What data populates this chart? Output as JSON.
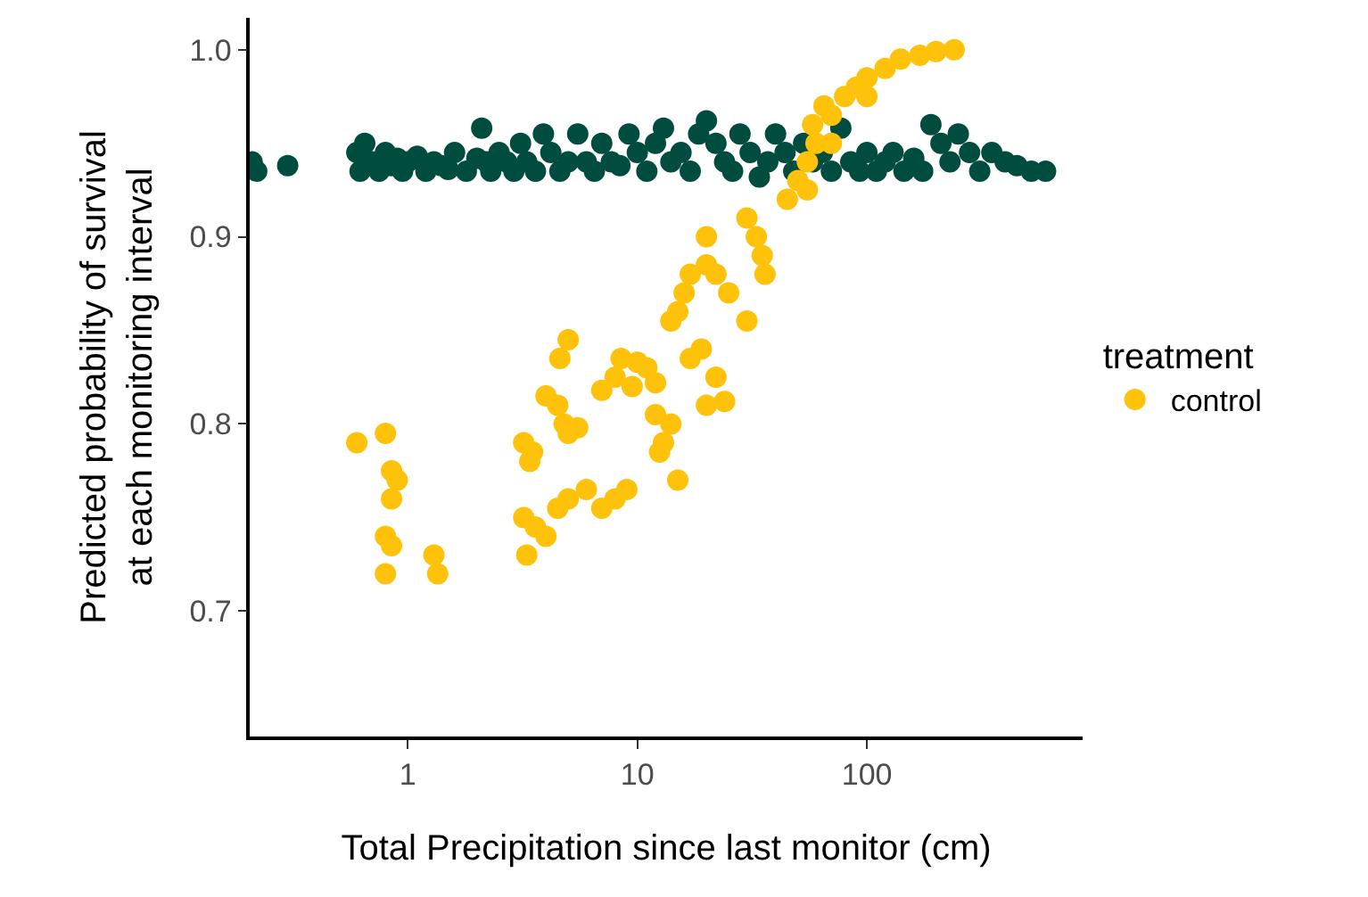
{
  "chart_data": {
    "type": "scatter",
    "xlabel": "Total Precipitation since last monitor (cm)",
    "ylabel": "Predicted probability of survival\nat each monitoring interval",
    "legend_title": "treatment",
    "legend": "right",
    "log": "x",
    "marker": "circle",
    "xlim": [
      0.205,
      870
    ],
    "xticks": [
      1,
      10,
      100
    ],
    "ylim": [
      0.633,
      1.017
    ],
    "yticks": [
      0.7,
      0.8,
      0.9,
      {
        "value": 1.0,
        "label": "1.0"
      }
    ],
    "series": [
      {
        "color": "#004d40",
        "x": [
          0.21,
          0.22,
          0.3,
          0.6,
          0.62,
          0.65,
          0.7,
          0.75,
          0.8,
          0.85,
          0.9,
          0.95,
          1.0,
          1.1,
          1.2,
          1.3,
          1.4,
          1.5,
          1.6,
          1.8,
          2.0,
          2.1,
          2.2,
          2.3,
          2.5,
          2.7,
          2.9,
          3.1,
          3.3,
          3.6,
          3.9,
          4.2,
          4.6,
          5.0,
          5.5,
          6.0,
          6.5,
          7.0,
          7.7,
          8.4,
          9.2,
          10,
          11,
          12,
          13,
          14,
          15.5,
          17,
          18.5,
          20,
          22,
          24,
          26,
          28,
          31,
          34,
          37,
          40,
          44,
          48,
          53,
          58,
          64,
          70,
          77,
          85,
          93,
          100,
          110,
          120,
          130,
          145,
          160,
          175,
          190,
          210,
          230,
          250,
          280,
          310,
          350,
          400,
          450,
          520,
          600
        ],
        "values": [
          0.94,
          0.935,
          0.938,
          0.945,
          0.935,
          0.95,
          0.94,
          0.935,
          0.945,
          0.938,
          0.942,
          0.935,
          0.94,
          0.943,
          0.935,
          0.94,
          0.938,
          0.936,
          0.945,
          0.935,
          0.942,
          0.958,
          0.94,
          0.935,
          0.945,
          0.94,
          0.935,
          0.95,
          0.94,
          0.935,
          0.955,
          0.945,
          0.935,
          0.94,
          0.955,
          0.94,
          0.935,
          0.95,
          0.94,
          0.938,
          0.955,
          0.945,
          0.935,
          0.95,
          0.958,
          0.94,
          0.945,
          0.935,
          0.955,
          0.962,
          0.95,
          0.94,
          0.935,
          0.955,
          0.945,
          0.932,
          0.94,
          0.955,
          0.945,
          0.935,
          0.95,
          0.94,
          0.945,
          0.935,
          0.958,
          0.94,
          0.935,
          0.945,
          0.935,
          0.94,
          0.945,
          0.935,
          0.942,
          0.935,
          0.96,
          0.95,
          0.94,
          0.955,
          0.945,
          0.935,
          0.945,
          0.94,
          0.938,
          0.935,
          0.935
        ]
      },
      {
        "name": "control",
        "color": "#ffc20a",
        "x": [
          0.6,
          0.8,
          0.85,
          0.9,
          0.85,
          0.8,
          0.85,
          0.8,
          1.3,
          1.35,
          3.2,
          3.5,
          3.4,
          3.2,
          3.3,
          3.6,
          4,
          4.5,
          5,
          6,
          7,
          8,
          9,
          4,
          4.5,
          4.6,
          5,
          4.8,
          5,
          5.5,
          7,
          8,
          8.5,
          10,
          11,
          12,
          9.5,
          12,
          13,
          14,
          15,
          12.5,
          14,
          15,
          16,
          17,
          20,
          20,
          22,
          25,
          19,
          17,
          22,
          24,
          20,
          30,
          30,
          33,
          35,
          36,
          45,
          50,
          55,
          60,
          58,
          65,
          55,
          70,
          80,
          90,
          100,
          120,
          140,
          170,
          200,
          240,
          100,
          70
        ],
        "values": [
          0.79,
          0.795,
          0.775,
          0.77,
          0.76,
          0.74,
          0.735,
          0.72,
          0.73,
          0.72,
          0.79,
          0.785,
          0.78,
          0.75,
          0.73,
          0.745,
          0.74,
          0.755,
          0.76,
          0.765,
          0.755,
          0.76,
          0.765,
          0.815,
          0.81,
          0.835,
          0.845,
          0.8,
          0.795,
          0.798,
          0.818,
          0.825,
          0.835,
          0.833,
          0.83,
          0.822,
          0.82,
          0.805,
          0.79,
          0.8,
          0.77,
          0.785,
          0.855,
          0.86,
          0.87,
          0.88,
          0.885,
          0.9,
          0.88,
          0.87,
          0.84,
          0.835,
          0.825,
          0.812,
          0.81,
          0.855,
          0.91,
          0.9,
          0.89,
          0.88,
          0.92,
          0.93,
          0.94,
          0.95,
          0.96,
          0.97,
          0.925,
          0.965,
          0.975,
          0.98,
          0.985,
          0.99,
          0.995,
          0.997,
          0.999,
          1.0,
          0.975,
          0.95
        ]
      }
    ]
  }
}
